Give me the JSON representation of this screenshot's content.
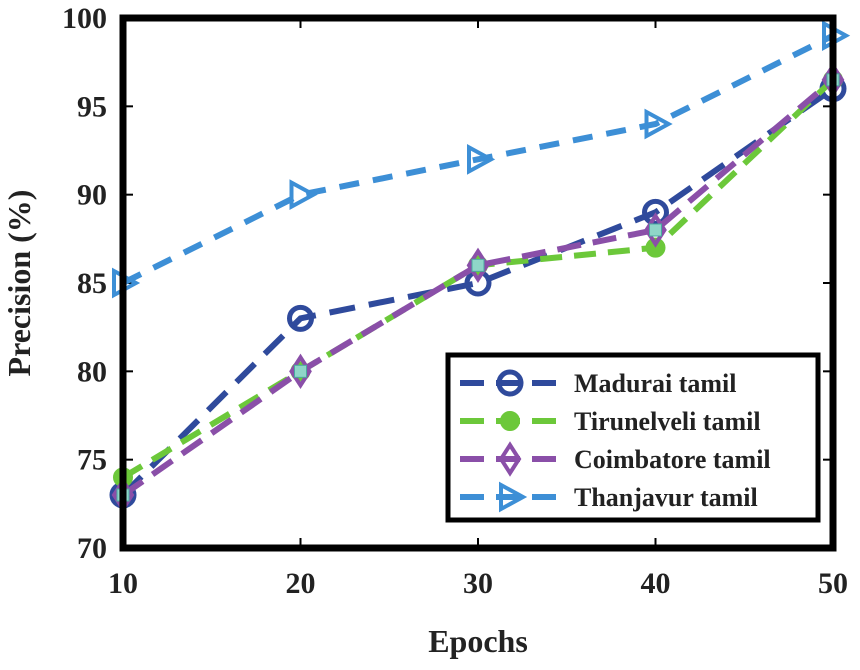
{
  "chart_data": {
    "type": "line",
    "title": "",
    "xlabel": "Epochs",
    "ylabel": "Precision (%)",
    "x": [
      10,
      20,
      30,
      40,
      50
    ],
    "xlim": [
      10,
      50
    ],
    "ylim": [
      70,
      100
    ],
    "xticks": [
      10,
      20,
      30,
      40,
      50
    ],
    "yticks": [
      70,
      75,
      80,
      85,
      90,
      95,
      100
    ],
    "grid": false,
    "legend_position": "bottom-right",
    "series": [
      {
        "name": "Madurai tamil",
        "values": [
          73,
          83,
          85,
          89,
          96
        ],
        "color": "#2f4a9c",
        "marker": "circle"
      },
      {
        "name": "Tirunelveli tamil",
        "values": [
          74,
          80,
          86,
          87,
          96.5
        ],
        "color": "#6cc83a",
        "marker": "dot"
      },
      {
        "name": "Coimbatore tamil",
        "values": [
          73,
          80,
          86,
          88,
          96.5
        ],
        "color": "#8a4fa8",
        "marker": "diamond"
      },
      {
        "name": "Thanjavur tamil",
        "values": [
          85,
          90,
          92,
          94,
          99
        ],
        "color": "#3d8fd6",
        "marker": "triangle-right"
      }
    ]
  }
}
